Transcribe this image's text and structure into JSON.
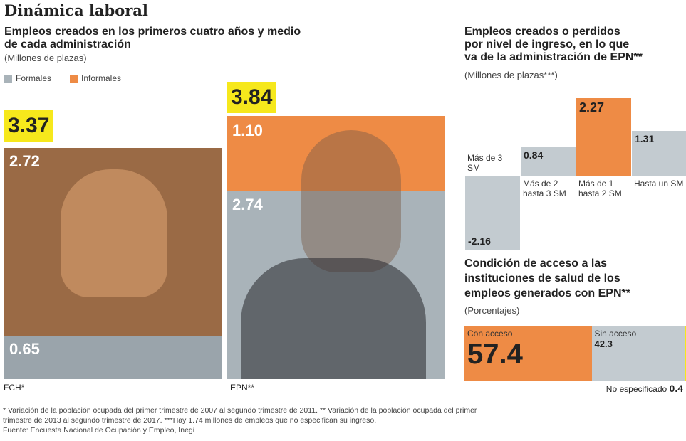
{
  "title": "Dinámica laboral",
  "left": {
    "subtitle_1": "Empleos creados en los primeros cuatro años y medio",
    "subtitle_2": "de cada administración",
    "unit": "(Millones de plazas)",
    "legend": [
      {
        "label": "Formales",
        "color": "#a9b3b9"
      },
      {
        "label": "Informales",
        "color": "#ee8b45"
      }
    ]
  },
  "chart_data": [
    {
      "type": "bar",
      "stacked": true,
      "categories": [
        "FCH*",
        "EPN**"
      ],
      "totals": [
        "3.37",
        "3.84"
      ],
      "segments": [
        {
          "category": "FCH*",
          "top": {
            "value": "2.72",
            "color": "#9a6a45"
          },
          "bottom": {
            "value": "0.65",
            "color": "#9aa4ab"
          }
        },
        {
          "category": "EPN**",
          "top": {
            "value": "1.10",
            "color": "#ee8b45"
          },
          "bottom": {
            "value": "2.74",
            "color": "#a9b3b9"
          }
        }
      ]
    },
    {
      "type": "bar",
      "title_1": "Empleos creados o perdidos",
      "title_2": "por nivel de ingreso, en lo que",
      "title_3": "va de la administración de EPN**",
      "unit": "(Millones de plazas***)",
      "categories": [
        "Más de 3 SM",
        "Más de 2 hasta 3 SM",
        "Más de 1 hasta 2 SM",
        "Hasta un SM"
      ],
      "values": [
        -2.16,
        0.84,
        2.27,
        1.31
      ],
      "value_labels": [
        "-2.16",
        "0.84",
        "2.27",
        "1.31"
      ],
      "colors": [
        "#c3cbd0",
        "#c3cbd0",
        "#ee8b45",
        "#c3cbd0"
      ]
    },
    {
      "type": "bar",
      "stacked": true,
      "title_1": "Condición de acceso a las",
      "title_2": "instituciones de salud de los",
      "title_3": "empleos generados con EPN**",
      "unit": "(Porcentajes)",
      "series": [
        {
          "name": "Con acceso",
          "value": 57.4,
          "label": "57.4",
          "color": "#ee8b45"
        },
        {
          "name": "Sin acceso",
          "value": 42.3,
          "label": "42.3",
          "color": "#c3cbd0"
        },
        {
          "name": "No especificado",
          "value": 0.4,
          "label": "0.4",
          "color": "#f6e81c"
        }
      ]
    }
  ],
  "footnotes": {
    "line1": "* Variación de la población ocupada del primer trimestre de 2007 al segundo trimestre de 2011. ** Variación de la población ocupada del primer",
    "line2": "trimestre de 2013 al segundo trimestre de 2017. ***Hay 1.74 millones de empleos que no especifican su ingreso.",
    "source": "Fuente: Encuesta Nacional de Ocupación y Empleo, Inegi"
  }
}
